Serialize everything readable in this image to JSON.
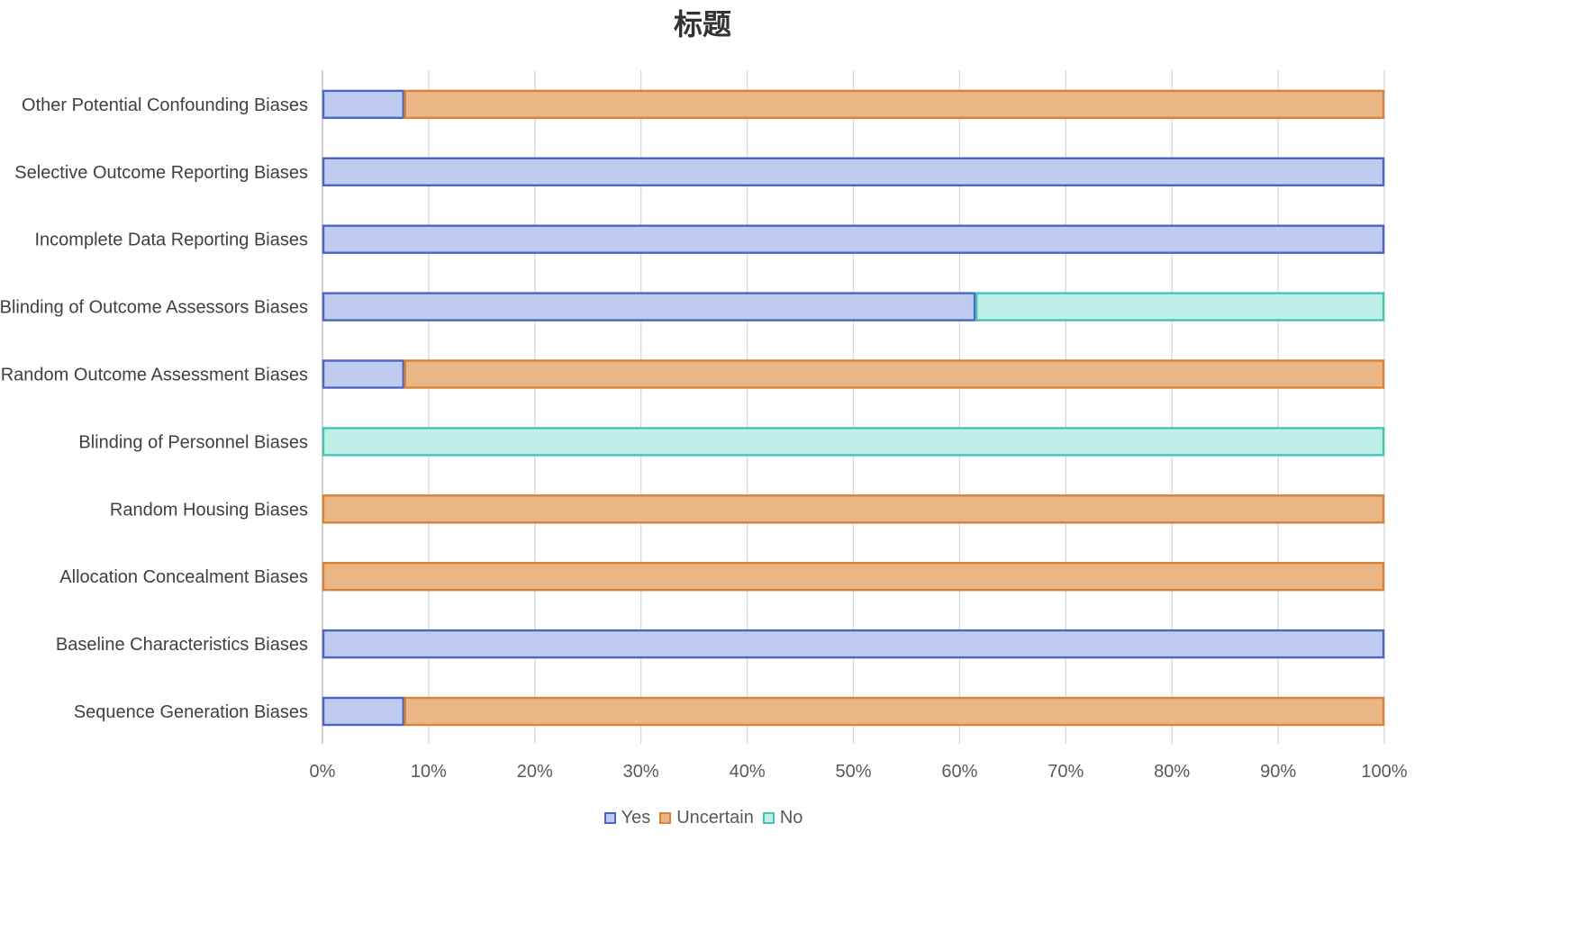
{
  "chart_data": {
    "type": "bar",
    "orientation": "horizontal",
    "stacked": "100%",
    "title": "标题",
    "categories": [
      "Sequence Generation Biases",
      "Baseline Characteristics Biases",
      "Allocation Concealment Biases",
      "Random Housing Biases",
      "Blinding of Personnel Biases",
      "Random Outcome Assessment Biases",
      "Blinding of Outcome Assessors Biases",
      "Incomplete Data Reporting Biases",
      "Selective Outcome Reporting Biases",
      "Other Potential Confounding Biases"
    ],
    "series": [
      {
        "name": "Yes",
        "values": [
          7.7,
          100,
          0,
          0,
          0,
          7.7,
          61.5,
          100,
          100,
          7.7
        ],
        "fill": "#c0cbf0",
        "stroke": "#4a66c4"
      },
      {
        "name": "Uncertain",
        "values": [
          92.3,
          0,
          100,
          100,
          0,
          92.3,
          0,
          0,
          0,
          92.3
        ],
        "fill": "#ebb685",
        "stroke": "#d9823a"
      },
      {
        "name": "No",
        "values": [
          0,
          0,
          0,
          0,
          100,
          0,
          38.5,
          0,
          0,
          0
        ],
        "fill": "#c0efe8",
        "stroke": "#45c4b3"
      }
    ],
    "xlim": [
      0,
      100
    ],
    "xticks": [
      "0%",
      "10%",
      "20%",
      "30%",
      "40%",
      "50%",
      "60%",
      "70%",
      "80%",
      "90%",
      "100%"
    ],
    "grid": "vertical",
    "legend_position": "bottom"
  }
}
